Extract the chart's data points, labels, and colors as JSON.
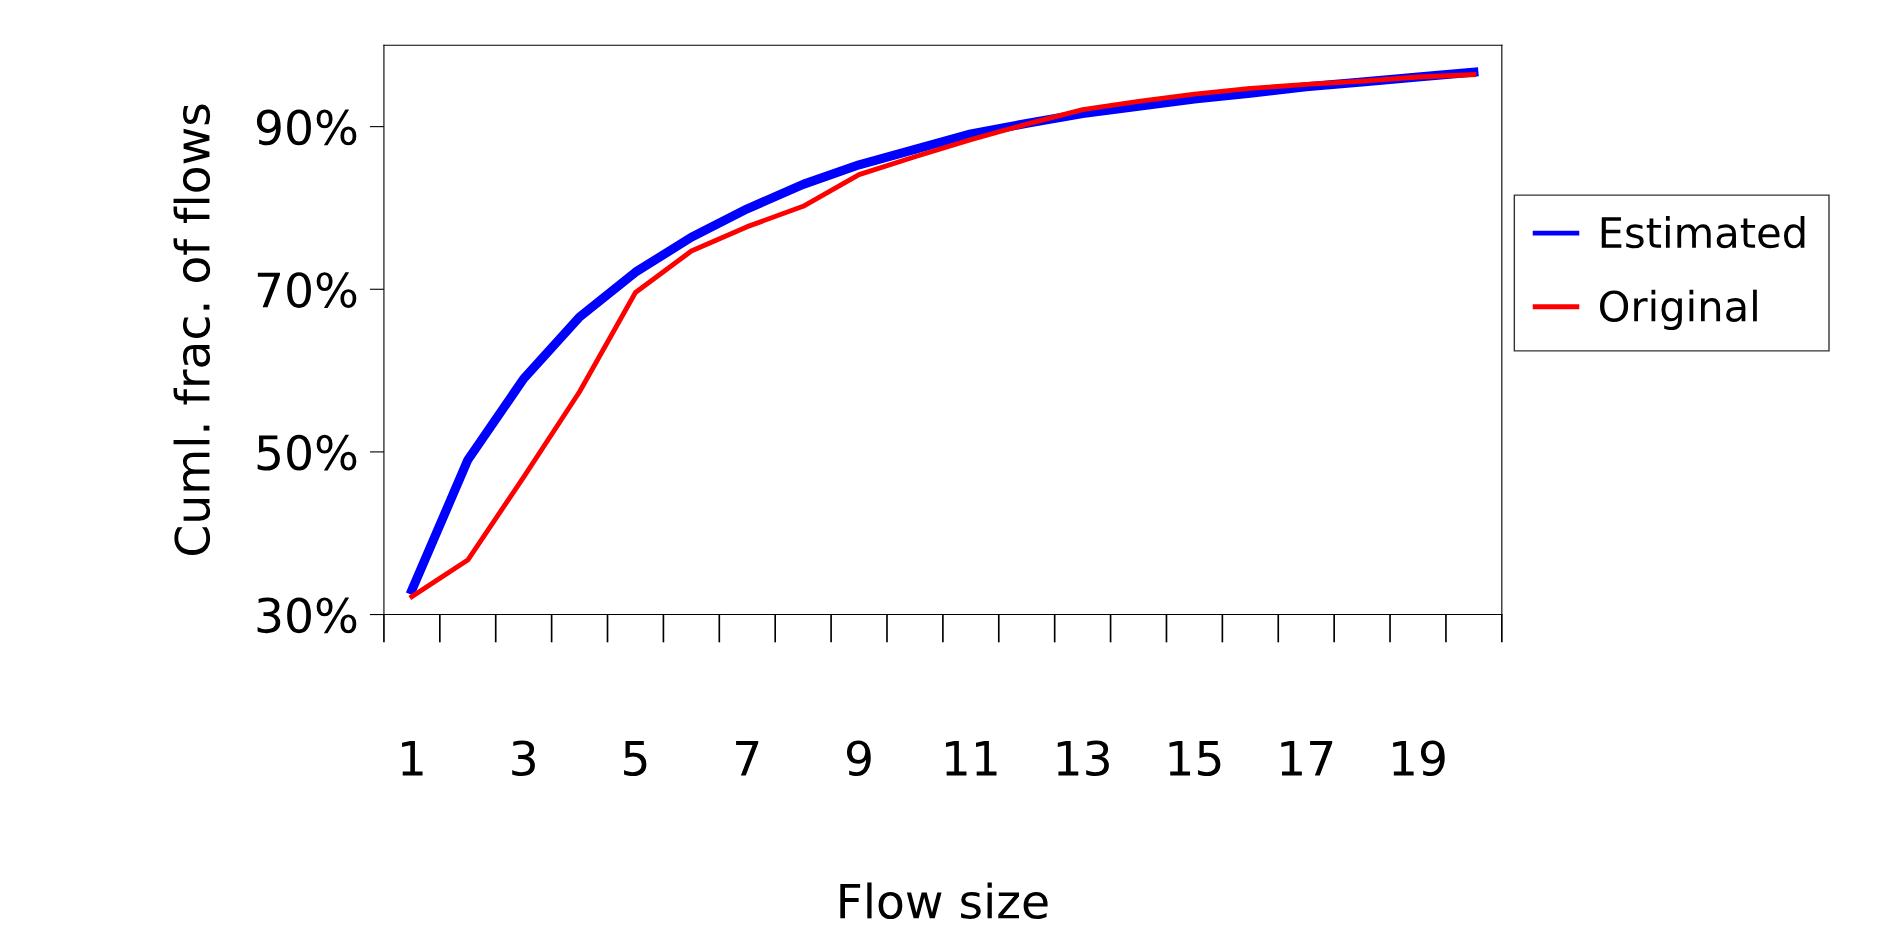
{
  "chart_data": {
    "type": "line",
    "xlabel": "Flow size",
    "ylabel": "Cuml. frac. of flows",
    "categories": [
      "1",
      null,
      "3",
      null,
      "5",
      null,
      "7",
      null,
      "9",
      null,
      "11",
      null,
      "13",
      null,
      "15",
      null,
      "17",
      null,
      "19",
      null
    ],
    "series": [
      {
        "name": "Estimated",
        "color": "#0000ff",
        "values": [
          33.0,
          49.0,
          59.0,
          66.6,
          72.1,
          76.4,
          79.9,
          82.9,
          85.3,
          87.2,
          89.1,
          90.4,
          91.6,
          92.5,
          93.4,
          94.1,
          94.9,
          95.5,
          96.1,
          96.7
        ]
      },
      {
        "name": "Original",
        "color": "#ff0000",
        "values": [
          32.2,
          36.7,
          46.9,
          57.4,
          69.6,
          74.7,
          77.7,
          80.2,
          84.1,
          86.3,
          88.4,
          90.3,
          92.1,
          93.1,
          94.0,
          94.7,
          95.2,
          95.6,
          96.1,
          96.4
        ]
      }
    ],
    "ylim": [
      30,
      100
    ],
    "yticks": [
      {
        "value": 30,
        "label": "30%"
      },
      {
        "value": 50,
        "label": "50%"
      },
      {
        "value": 70,
        "label": "70%"
      },
      {
        "value": 90,
        "label": "90%"
      }
    ],
    "legend": "right",
    "grid": false,
    "marker": "none",
    "line_style": "solid"
  }
}
